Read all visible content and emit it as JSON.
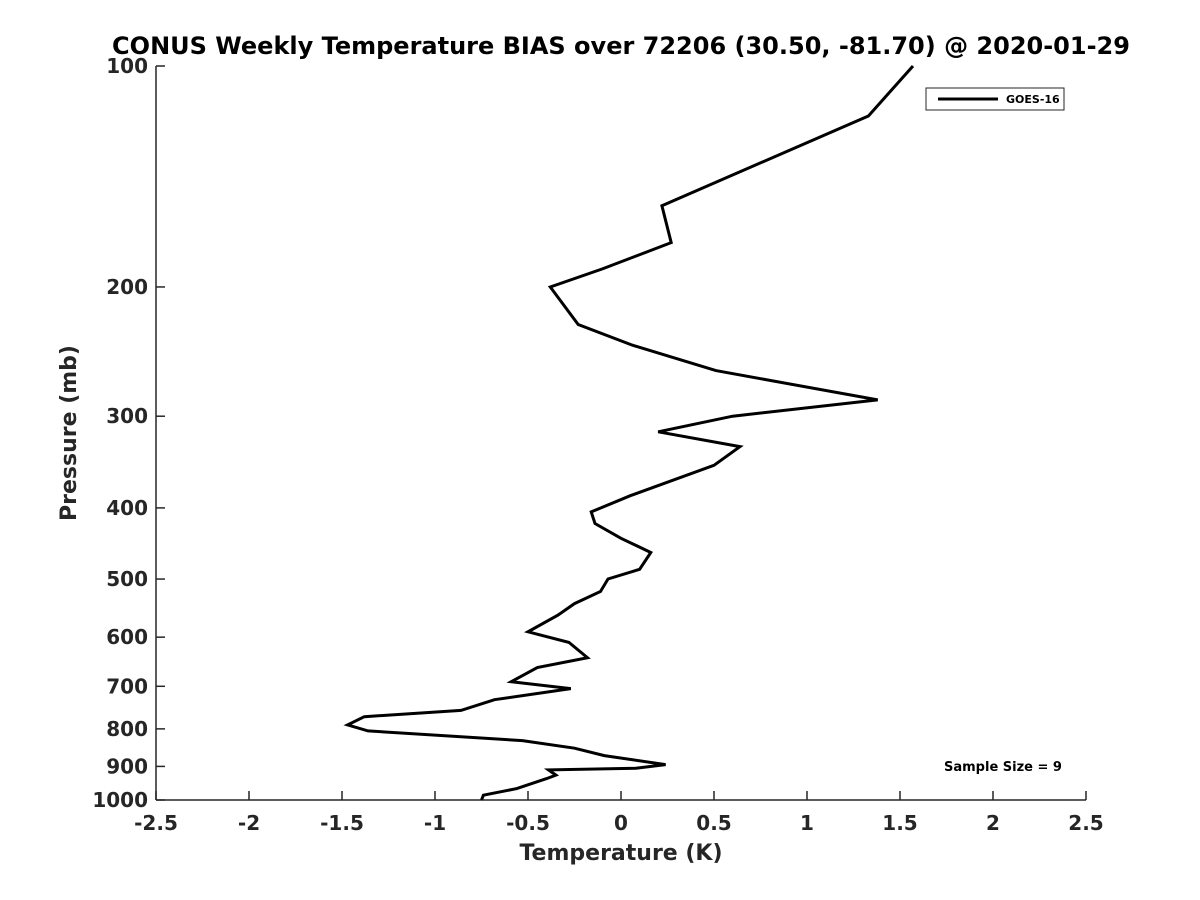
{
  "chart_data": {
    "type": "line",
    "title": "CONUS Weekly Temperature BIAS over 72206 (30.50, -81.70) @ 2020-01-29",
    "xlabel": "Temperature (K)",
    "ylabel": "Pressure (mb)",
    "xlim": [
      -2.5,
      2.5
    ],
    "ylim": [
      1000,
      100
    ],
    "yscale": "log",
    "y_reversed": true,
    "grid": false,
    "legend_position": "top-right",
    "xticks": [
      -2.5,
      -2,
      -1.5,
      -1,
      -0.5,
      0,
      0.5,
      1,
      1.5,
      2,
      2.5
    ],
    "xtick_labels": [
      "-2.5",
      "-2",
      "-1.5",
      "-1",
      "-0.5",
      "0",
      "0.5",
      "1",
      "1.5",
      "2",
      "2.5"
    ],
    "yticks": [
      100,
      200,
      300,
      400,
      500,
      600,
      700,
      800,
      900,
      1000
    ],
    "ytick_labels": [
      "100",
      "200",
      "300",
      "400",
      "500",
      "600",
      "700",
      "800",
      "900",
      "1000"
    ],
    "series": [
      {
        "name": "GOES-16",
        "color": "#000000",
        "x": [
          1.57,
          1.33,
          0.22,
          0.27,
          -0.1,
          -0.38,
          -0.23,
          0.06,
          0.51,
          1.38,
          0.6,
          0.2,
          0.64,
          0.5,
          0.05,
          -0.16,
          -0.14,
          0.0,
          0.16,
          0.1,
          -0.07,
          -0.11,
          -0.25,
          -0.34,
          -0.5,
          -0.28,
          -0.18,
          -0.45,
          -0.59,
          -0.27,
          -0.68,
          -0.86,
          -1.38,
          -1.47,
          -1.36,
          -0.53,
          -0.25,
          -0.09,
          0.24,
          0.08,
          -0.39,
          -0.35,
          -0.4,
          -0.56,
          -0.74,
          -0.75
        ],
        "y": [
          100,
          117,
          155,
          174,
          189,
          200,
          225,
          240,
          260,
          285,
          300,
          315,
          330,
          350,
          385,
          405,
          420,
          440,
          460,
          485,
          500,
          520,
          540,
          560,
          590,
          610,
          640,
          660,
          690,
          705,
          730,
          755,
          770,
          790,
          805,
          830,
          850,
          870,
          895,
          905,
          910,
          925,
          935,
          965,
          985,
          1000
        ]
      }
    ],
    "annotations": [
      "Sample Size = 9"
    ]
  }
}
